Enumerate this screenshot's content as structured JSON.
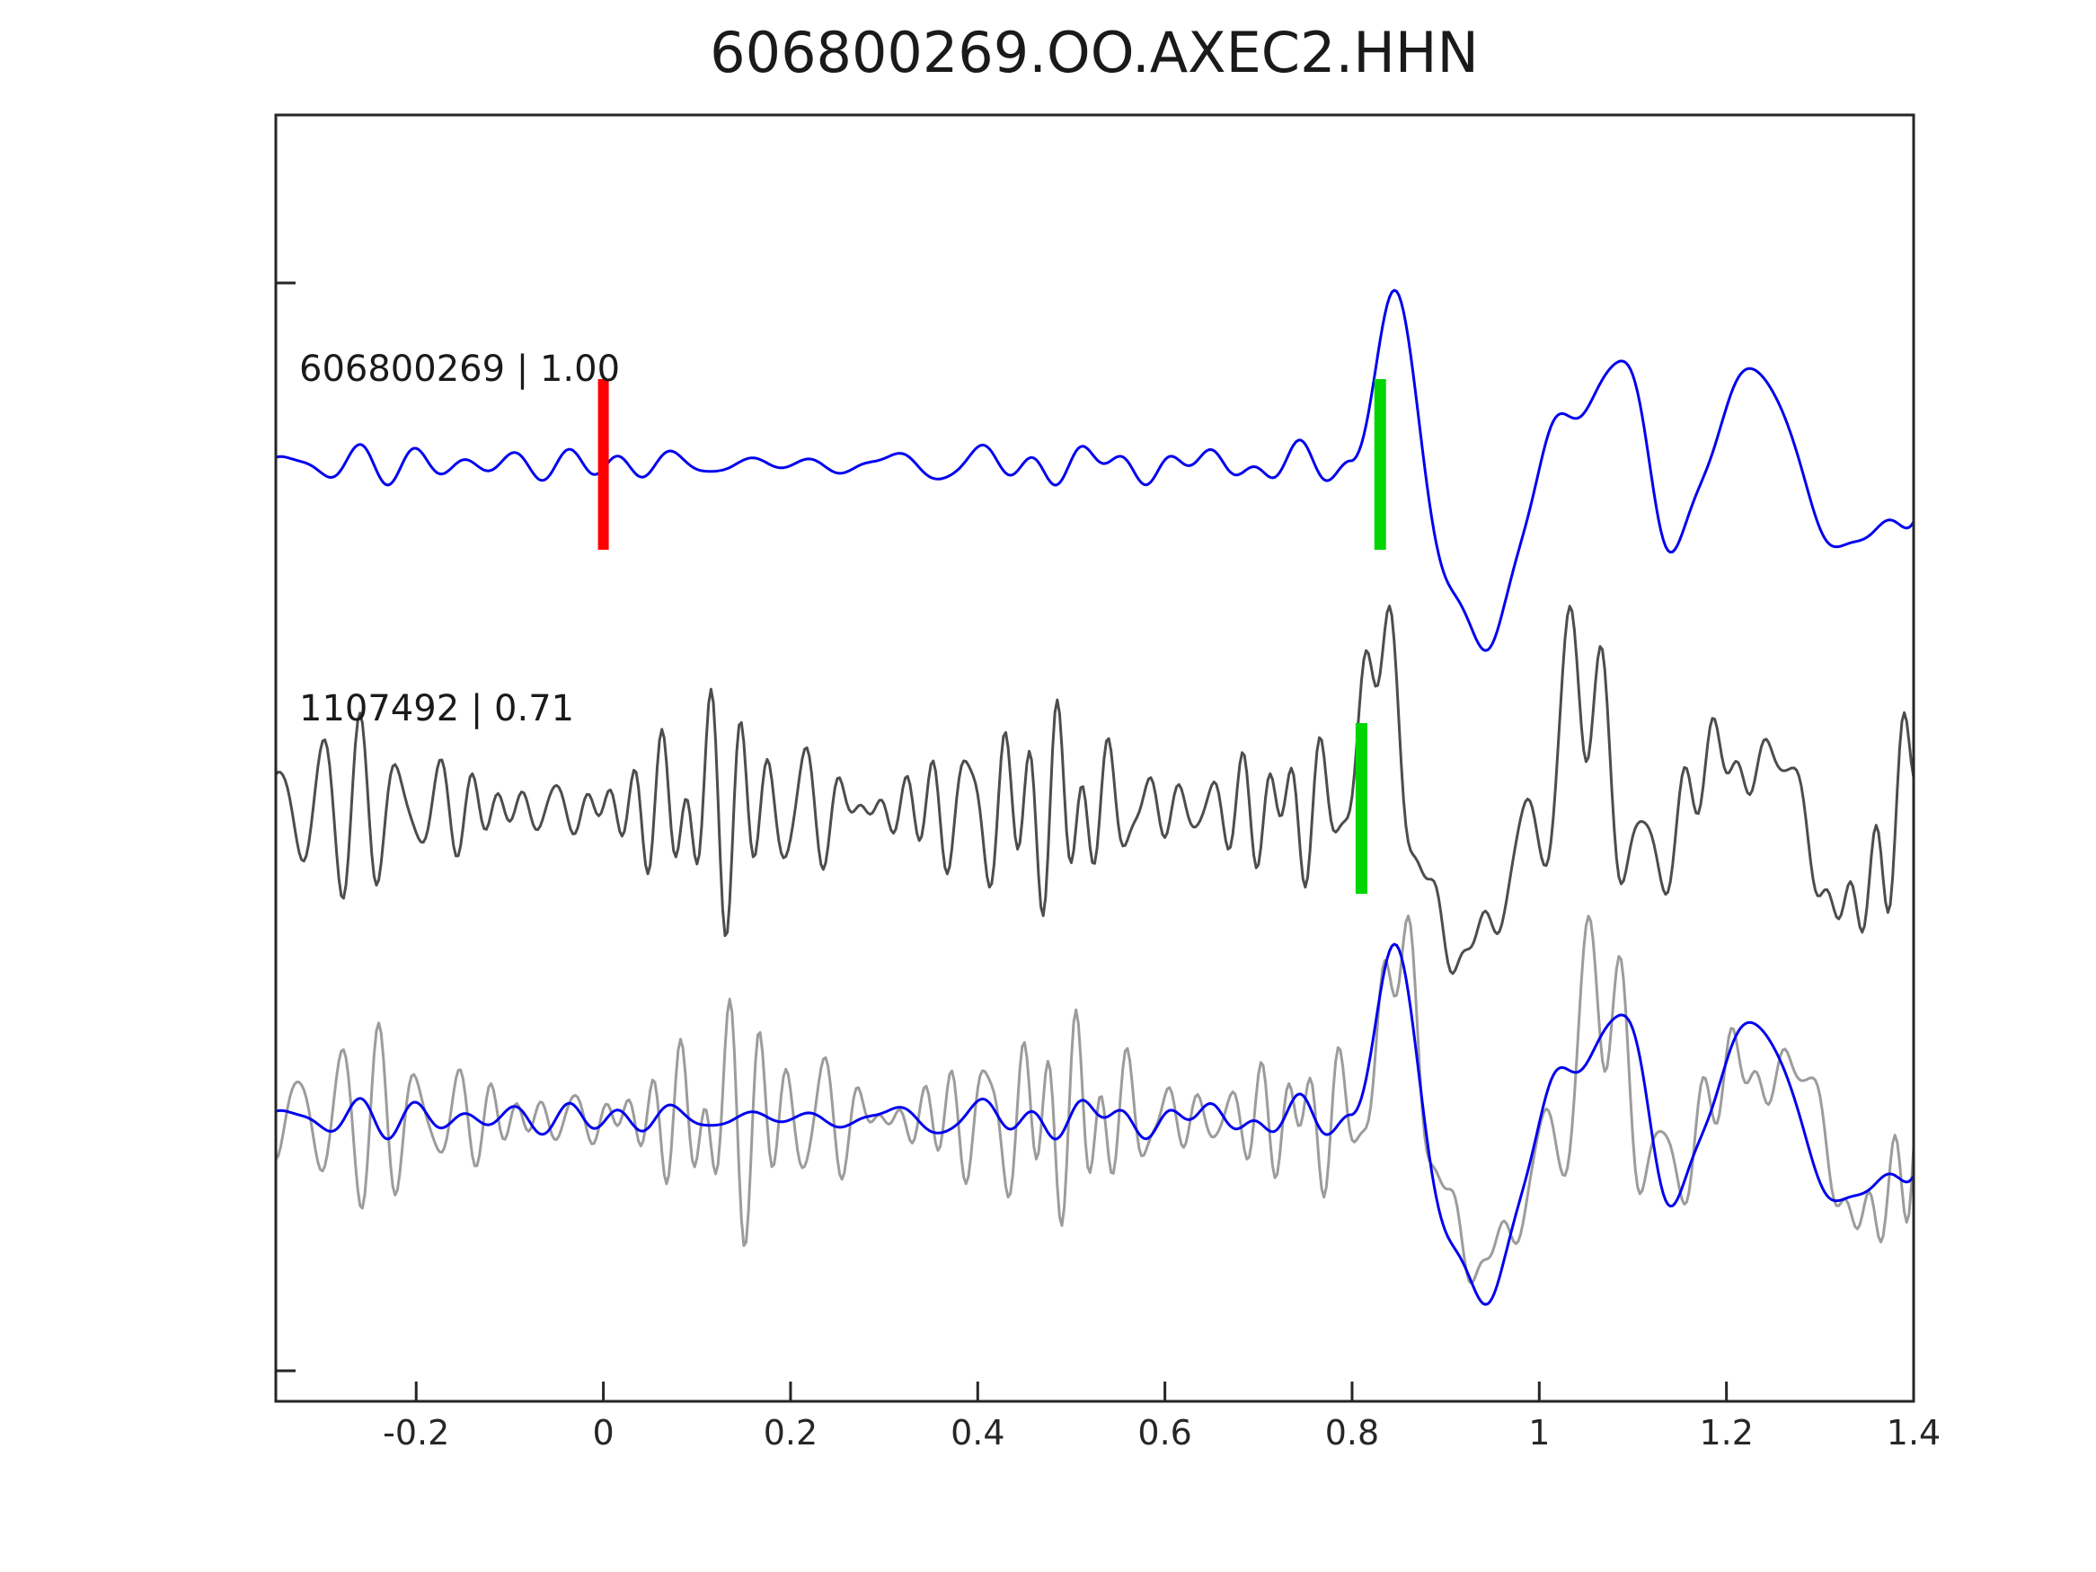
{
  "title": "606800269.OO.AXEC2.HHN",
  "colors": {
    "template_trace": "#0000ee",
    "detection_trace": "#4d4d4d",
    "overlay_detection_trace": "#9c9c9c",
    "origin_marker": "#ff0000",
    "pick_marker": "#00d500",
    "axis": "#262626",
    "background": "#ffffff"
  },
  "chart_data": {
    "type": "line",
    "title": "606800269.OO.AXEC2.HHN",
    "xlabel": "",
    "ylabel": "",
    "xlim": [
      -0.35,
      1.4
    ],
    "grid": false,
    "legend": "none",
    "x_ticks": [
      {
        "value": -0.2,
        "label": "-0.2"
      },
      {
        "value": 0,
        "label": "0"
      },
      {
        "value": 0.2,
        "label": "0.2"
      },
      {
        "value": 0.4,
        "label": "0.4"
      },
      {
        "value": 0.6,
        "label": "0.6"
      },
      {
        "value": 0.8,
        "label": "0.8"
      },
      {
        "value": 1,
        "label": "1"
      },
      {
        "value": 1.2,
        "label": "1.2"
      },
      {
        "value": 1.4,
        "label": "1.4"
      }
    ],
    "annotations": [
      {
        "text": "606800269 | 1.00"
      },
      {
        "text": "1107492 | 0.71"
      }
    ],
    "markers": [
      {
        "name": "origin-time-marker",
        "x": 0,
        "color": "#ff0000",
        "panel": 0,
        "stroke_width": 12
      },
      {
        "name": "template-pick-marker",
        "x": 0.83,
        "color": "#00d500",
        "panel": 0,
        "stroke_width": 13
      },
      {
        "name": "detection-pick-marker",
        "x": 0.81,
        "color": "#00d500",
        "panel": 1,
        "stroke_width": 13
      }
    ],
    "traces": [
      {
        "id": "template",
        "label": "606800269",
        "correlation": "1.00",
        "color": "#0000ee",
        "panel": 0,
        "synthesis": {
          "seed": 7,
          "dt": 0.0025,
          "noise": {
            "amp": 0.1,
            "f1": 8,
            "f2": 22,
            "n": 24
          },
          "signal": {
            "onset": 0.8,
            "rise": 0.03,
            "decay": 1.5,
            "components": [
              [
                5,
                1.0,
                0.157
              ],
              [
                8,
                0.35,
                5.592
              ],
              [
                12,
                0.2,
                4.461
              ],
              [
                2.5,
                0.55,
                2.434
              ]
            ]
          }
        }
      },
      {
        "id": "detection",
        "label": "1107492",
        "correlation": "0.71",
        "color": "#4d4d4d",
        "panel": 1,
        "synthesis": {
          "seed": 13,
          "dt": 0.0025,
          "noise": {
            "amp": 0.45,
            "f1": 18,
            "f2": 40,
            "n": 30
          },
          "signal": {
            "onset": 0.785,
            "rise": 0.025,
            "decay": 1.5,
            "components": [
              [
                5,
                1.0,
                0.157
              ],
              [
                9,
                0.4,
                5.309
              ],
              [
                14,
                0.25,
                3.896
              ],
              [
                2.5,
                0.5,
                2.434
              ]
            ]
          }
        }
      },
      {
        "id": "overlay-detection",
        "base": "detection",
        "color": "#9c9c9c",
        "panel": 2,
        "time_shift": 0.02
      },
      {
        "id": "overlay-template",
        "base": "template",
        "color": "#0000ee",
        "panel": 2,
        "time_shift": 0
      }
    ]
  }
}
